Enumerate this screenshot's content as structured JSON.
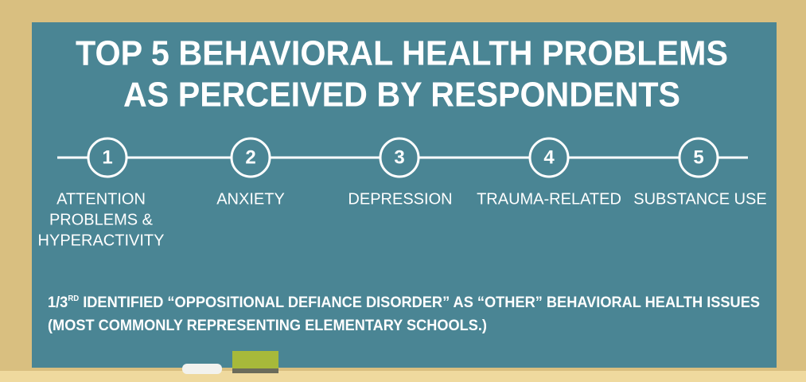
{
  "title": [
    "TOP 5 BEHAVIORAL HEALTH PROBLEMS",
    "AS PERCEIVED BY RESPONDENTS"
  ],
  "items": [
    {
      "number": 1,
      "label": [
        "ATTENTION",
        "PROBLEMS &",
        "HYPERACTIVITY"
      ]
    },
    {
      "number": 2,
      "label": [
        "ANXIETY"
      ]
    },
    {
      "number": 3,
      "label": [
        "DEPRESSION"
      ]
    },
    {
      "number": 4,
      "label": [
        "TRAUMA-RELATED"
      ]
    },
    {
      "number": 5,
      "label": [
        "SUBSTANCE USE"
      ]
    }
  ],
  "footnote": {
    "fraction": "1/3",
    "superscript": "RD",
    "line1": " IDENTIFIED “OPPOSITIONAL DEFIANCE DISORDER” AS “OTHER” BEHAVIORAL HEALTH ISSUES",
    "line2": "(MOST COMMONLY REPRESENTING ELEMENTARY SCHOOLS.)"
  }
}
